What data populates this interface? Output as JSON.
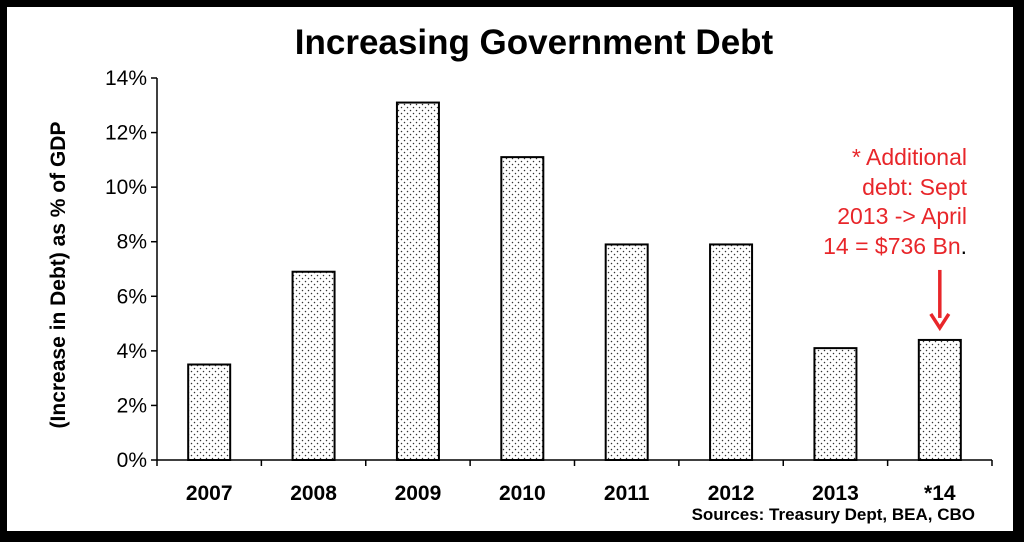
{
  "chart_data": {
    "type": "bar",
    "title": "Increasing Government Debt",
    "ylabel": "(Increase in Debt) as % of GDP",
    "xlabel": "",
    "categories": [
      "2007",
      "2008",
      "2009",
      "2010",
      "2011",
      "2012",
      "2013",
      "*14"
    ],
    "values": [
      3.5,
      6.9,
      13.1,
      11.1,
      7.9,
      7.9,
      4.1,
      4.4
    ],
    "ylim": [
      0,
      14
    ],
    "yticks": [
      0,
      2,
      4,
      6,
      8,
      10,
      12,
      14
    ],
    "ytick_format": "%",
    "grid": false,
    "legend": "none",
    "bar_fill": "dotted pattern",
    "annotation": {
      "lines": [
        "* Additional",
        "debt: Sept",
        "2013 -> April",
        "14 = $736 Bn."
      ],
      "color": "#e8262a",
      "points_to": "*14"
    },
    "source": "Sources: Treasury Dept, BEA, CBO"
  }
}
